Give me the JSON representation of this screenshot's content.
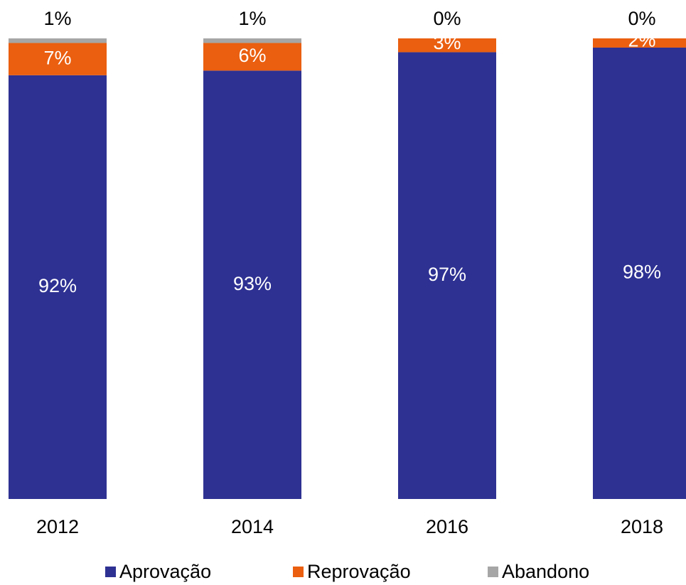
{
  "chart_data": {
    "type": "stacked-bar",
    "categories": [
      "2012",
      "2014",
      "2016",
      "2018"
    ],
    "ylim": [
      0,
      100
    ],
    "series": [
      {
        "name": "Aprovação",
        "color": "#2e3192",
        "values": [
          92,
          93,
          97,
          98
        ],
        "value_labels": [
          "92%",
          "93%",
          "97%",
          "98%"
        ]
      },
      {
        "name": "Reprovação",
        "color": "#ea5f10",
        "values": [
          7,
          6,
          3,
          2
        ],
        "value_labels": [
          "7%",
          "6%",
          "3%",
          "2%"
        ]
      },
      {
        "name": "Abandono",
        "color": "#a6a6a6",
        "values": [
          1,
          1,
          0,
          0
        ],
        "value_labels": [
          "1%",
          "1%",
          "0%",
          "0%"
        ]
      }
    ]
  }
}
